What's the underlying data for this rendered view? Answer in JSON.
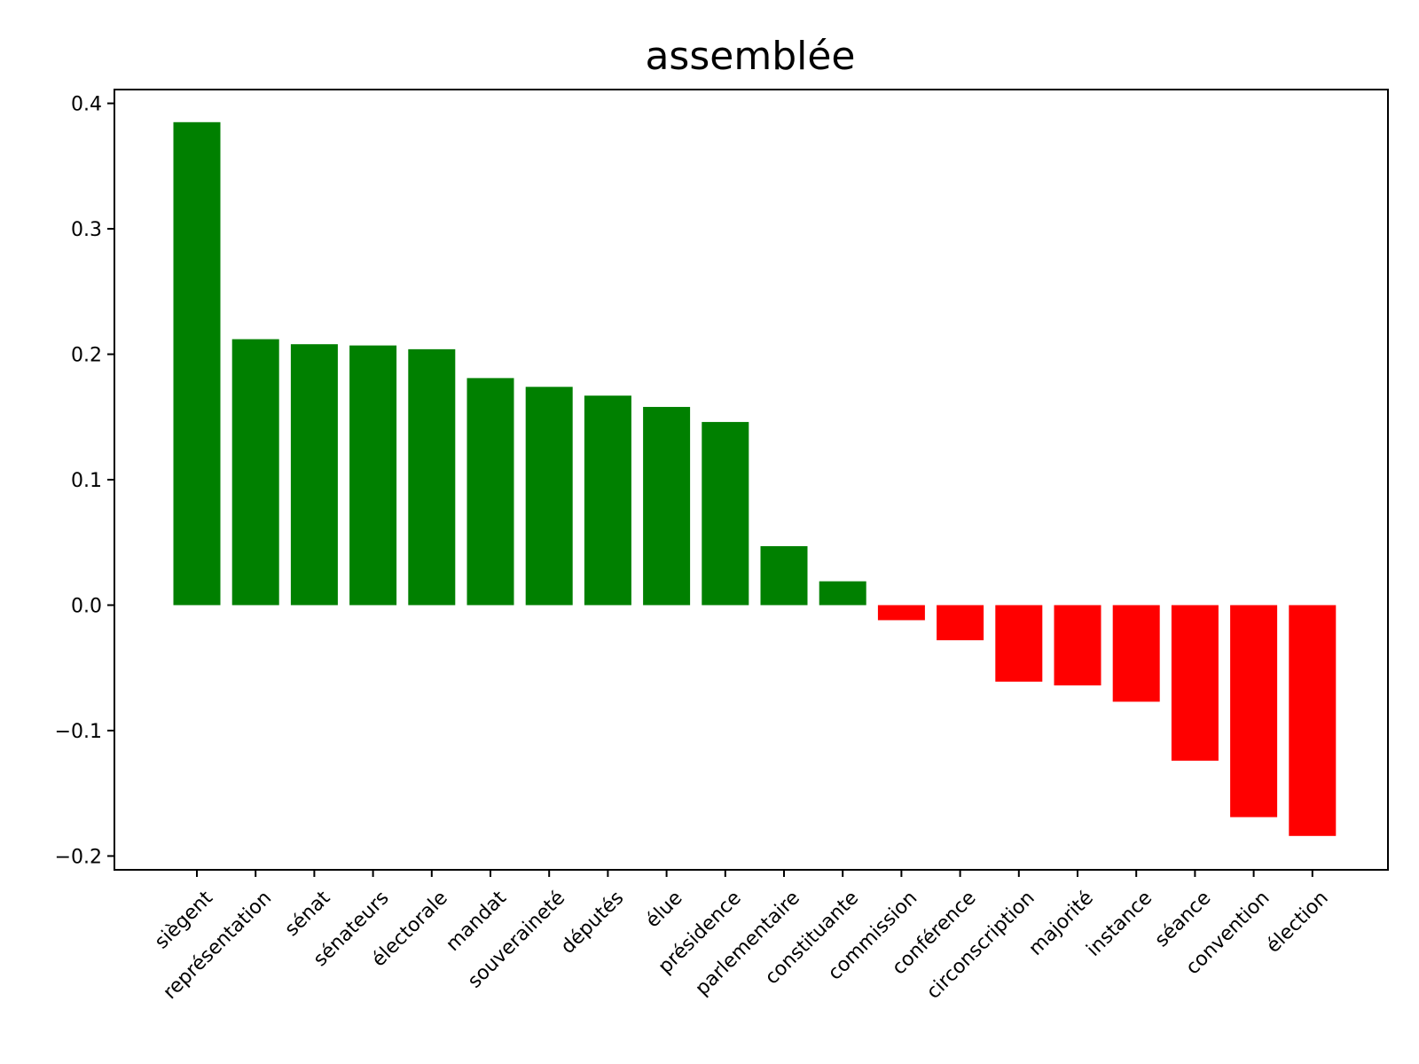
{
  "colors": {
    "positive": "#008000",
    "negative": "#ff0000",
    "axis": "#000000",
    "background": "#ffffff"
  },
  "chart_data": {
    "type": "bar",
    "title": "assemblée",
    "xlabel": "",
    "ylabel": "",
    "ylim": [
      -0.211,
      0.411
    ],
    "yticks": [
      {
        "value": 0.4,
        "label": "0.4"
      },
      {
        "value": 0.3,
        "label": "0.3"
      },
      {
        "value": 0.2,
        "label": "0.2"
      },
      {
        "value": 0.1,
        "label": "0.1"
      },
      {
        "value": 0.0,
        "label": "0.0"
      },
      {
        "value": -0.1,
        "label": "−0.1"
      },
      {
        "value": -0.2,
        "label": "−0.2"
      }
    ],
    "x_tick_rotation_deg": 45,
    "grid": false,
    "legend": "none",
    "categories": [
      "siègent",
      "représentation",
      "sénat",
      "sénateurs",
      "électorale",
      "mandat",
      "souveraineté",
      "députés",
      "élue",
      "présidence",
      "parlementaire",
      "constituante",
      "commission",
      "conférence",
      "circonscription",
      "majorité",
      "instance",
      "séance",
      "convention",
      "élection"
    ],
    "values": [
      0.385,
      0.212,
      0.208,
      0.207,
      0.204,
      0.181,
      0.174,
      0.167,
      0.158,
      0.146,
      0.047,
      0.019,
      -0.012,
      -0.028,
      -0.061,
      -0.064,
      -0.077,
      -0.124,
      -0.169,
      -0.184
    ]
  }
}
